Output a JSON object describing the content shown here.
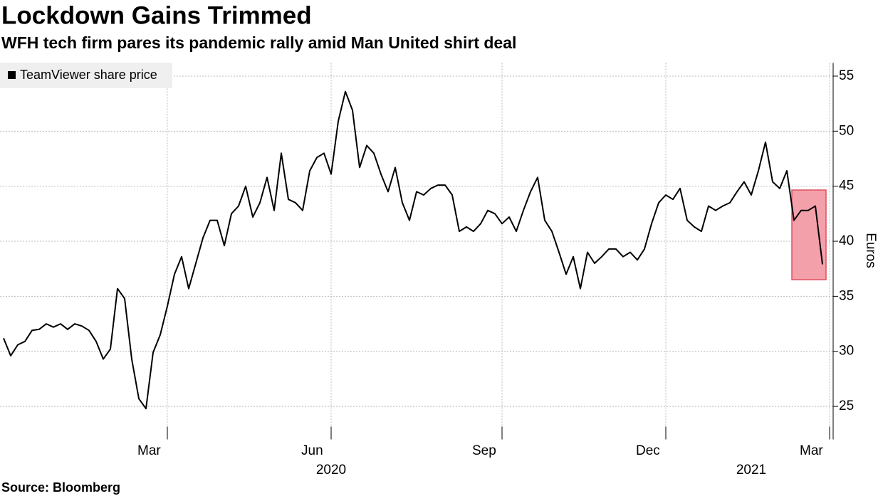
{
  "chart_data": {
    "type": "line",
    "title": "Lockdown Gains Trimmed",
    "subtitle": "WFH tech firm pares its pandemic rally amid Man United shirt deal",
    "source": "Source: Bloomberg",
    "y_axis_label": "Euros",
    "categories": [
      null,
      null,
      null,
      null,
      null,
      null,
      null,
      null,
      null,
      null,
      null,
      null,
      null,
      null,
      null,
      null,
      null,
      null,
      null,
      null,
      null,
      null,
      null,
      "Mar",
      null,
      null,
      null,
      null,
      null,
      null,
      null,
      null,
      null,
      null,
      null,
      null,
      null,
      null,
      null,
      null,
      null,
      null,
      null,
      null,
      null,
      null,
      "Jun",
      null,
      null,
      null,
      null,
      null,
      null,
      null,
      null,
      null,
      null,
      null,
      null,
      null,
      null,
      null,
      null,
      null,
      null,
      null,
      null,
      null,
      null,
      null,
      "Sep",
      null,
      null,
      null,
      null,
      null,
      null,
      null,
      null,
      null,
      null,
      null,
      null,
      null,
      null,
      null,
      null,
      null,
      null,
      null,
      null,
      null,
      null,
      "Dec",
      null,
      null,
      null,
      null,
      null,
      null,
      null,
      null,
      null,
      null,
      null,
      null,
      null,
      null,
      null,
      null,
      null,
      null,
      null,
      null,
      null,
      null,
      "Mar"
    ],
    "category_groups": [
      null,
      null,
      null,
      null,
      null,
      null,
      null,
      null,
      null,
      null,
      null,
      null,
      null,
      null,
      null,
      null,
      null,
      null,
      null,
      null,
      null,
      null,
      null,
      null,
      null,
      null,
      null,
      null,
      null,
      null,
      null,
      null,
      null,
      null,
      null,
      null,
      null,
      null,
      null,
      null,
      null,
      null,
      null,
      null,
      null,
      null,
      "2020",
      null,
      null,
      null,
      null,
      null,
      null,
      null,
      null,
      null,
      null,
      null,
      null,
      null,
      null,
      null,
      null,
      null,
      null,
      null,
      null,
      null,
      null,
      null,
      null,
      null,
      null,
      null,
      null,
      null,
      null,
      null,
      null,
      null,
      null,
      null,
      null,
      null,
      null,
      null,
      null,
      null,
      null,
      null,
      null,
      null,
      null,
      null,
      null,
      null,
      null,
      null,
      null,
      null,
      null,
      null,
      null,
      null,
      null,
      "2021",
      null,
      null,
      null,
      null,
      null,
      null,
      null,
      null,
      null,
      null,
      null
    ],
    "series": [
      {
        "name": "TeamViewer share price",
        "color": "#000000",
        "values": [
          31.2,
          29.6,
          30.6,
          30.9,
          31.9,
          32.0,
          32.5,
          32.2,
          32.5,
          32.0,
          32.5,
          32.3,
          31.9,
          30.9,
          29.3,
          30.2,
          35.7,
          34.8,
          29.3,
          25.7,
          24.8,
          29.9,
          31.5,
          34.1,
          37.0,
          38.6,
          35.7,
          38.0,
          40.3,
          41.9,
          41.9,
          39.6,
          42.5,
          43.2,
          45.0,
          42.2,
          43.5,
          45.8,
          42.8,
          48.0,
          43.8,
          43.5,
          42.8,
          46.4,
          47.6,
          48.0,
          46.1,
          50.9,
          53.6,
          51.9,
          46.7,
          48.7,
          48.0,
          46.1,
          44.5,
          46.7,
          43.5,
          41.9,
          44.5,
          44.2,
          44.8,
          45.1,
          45.1,
          44.2,
          40.9,
          41.3,
          40.9,
          41.6,
          42.8,
          42.5,
          41.6,
          42.2,
          40.9,
          42.8,
          44.5,
          45.8,
          41.9,
          40.9,
          39.0,
          37.0,
          38.6,
          35.7,
          39.0,
          38.0,
          38.6,
          39.3,
          39.3,
          38.6,
          39.0,
          38.3,
          39.3,
          41.6,
          43.5,
          44.2,
          43.8,
          44.8,
          41.9,
          41.3,
          40.9,
          43.2,
          42.8,
          43.2,
          43.5,
          44.5,
          45.4,
          44.2,
          46.4,
          49.0,
          45.4,
          44.8,
          46.4,
          41.9,
          42.8,
          42.8,
          43.2,
          37.9,
          null
        ]
      }
    ],
    "ylim": [
      22,
      56.2
    ],
    "yticks": [
      25,
      30,
      35,
      40,
      45,
      50,
      55
    ],
    "grid": true,
    "legend": "top-left"
  }
}
